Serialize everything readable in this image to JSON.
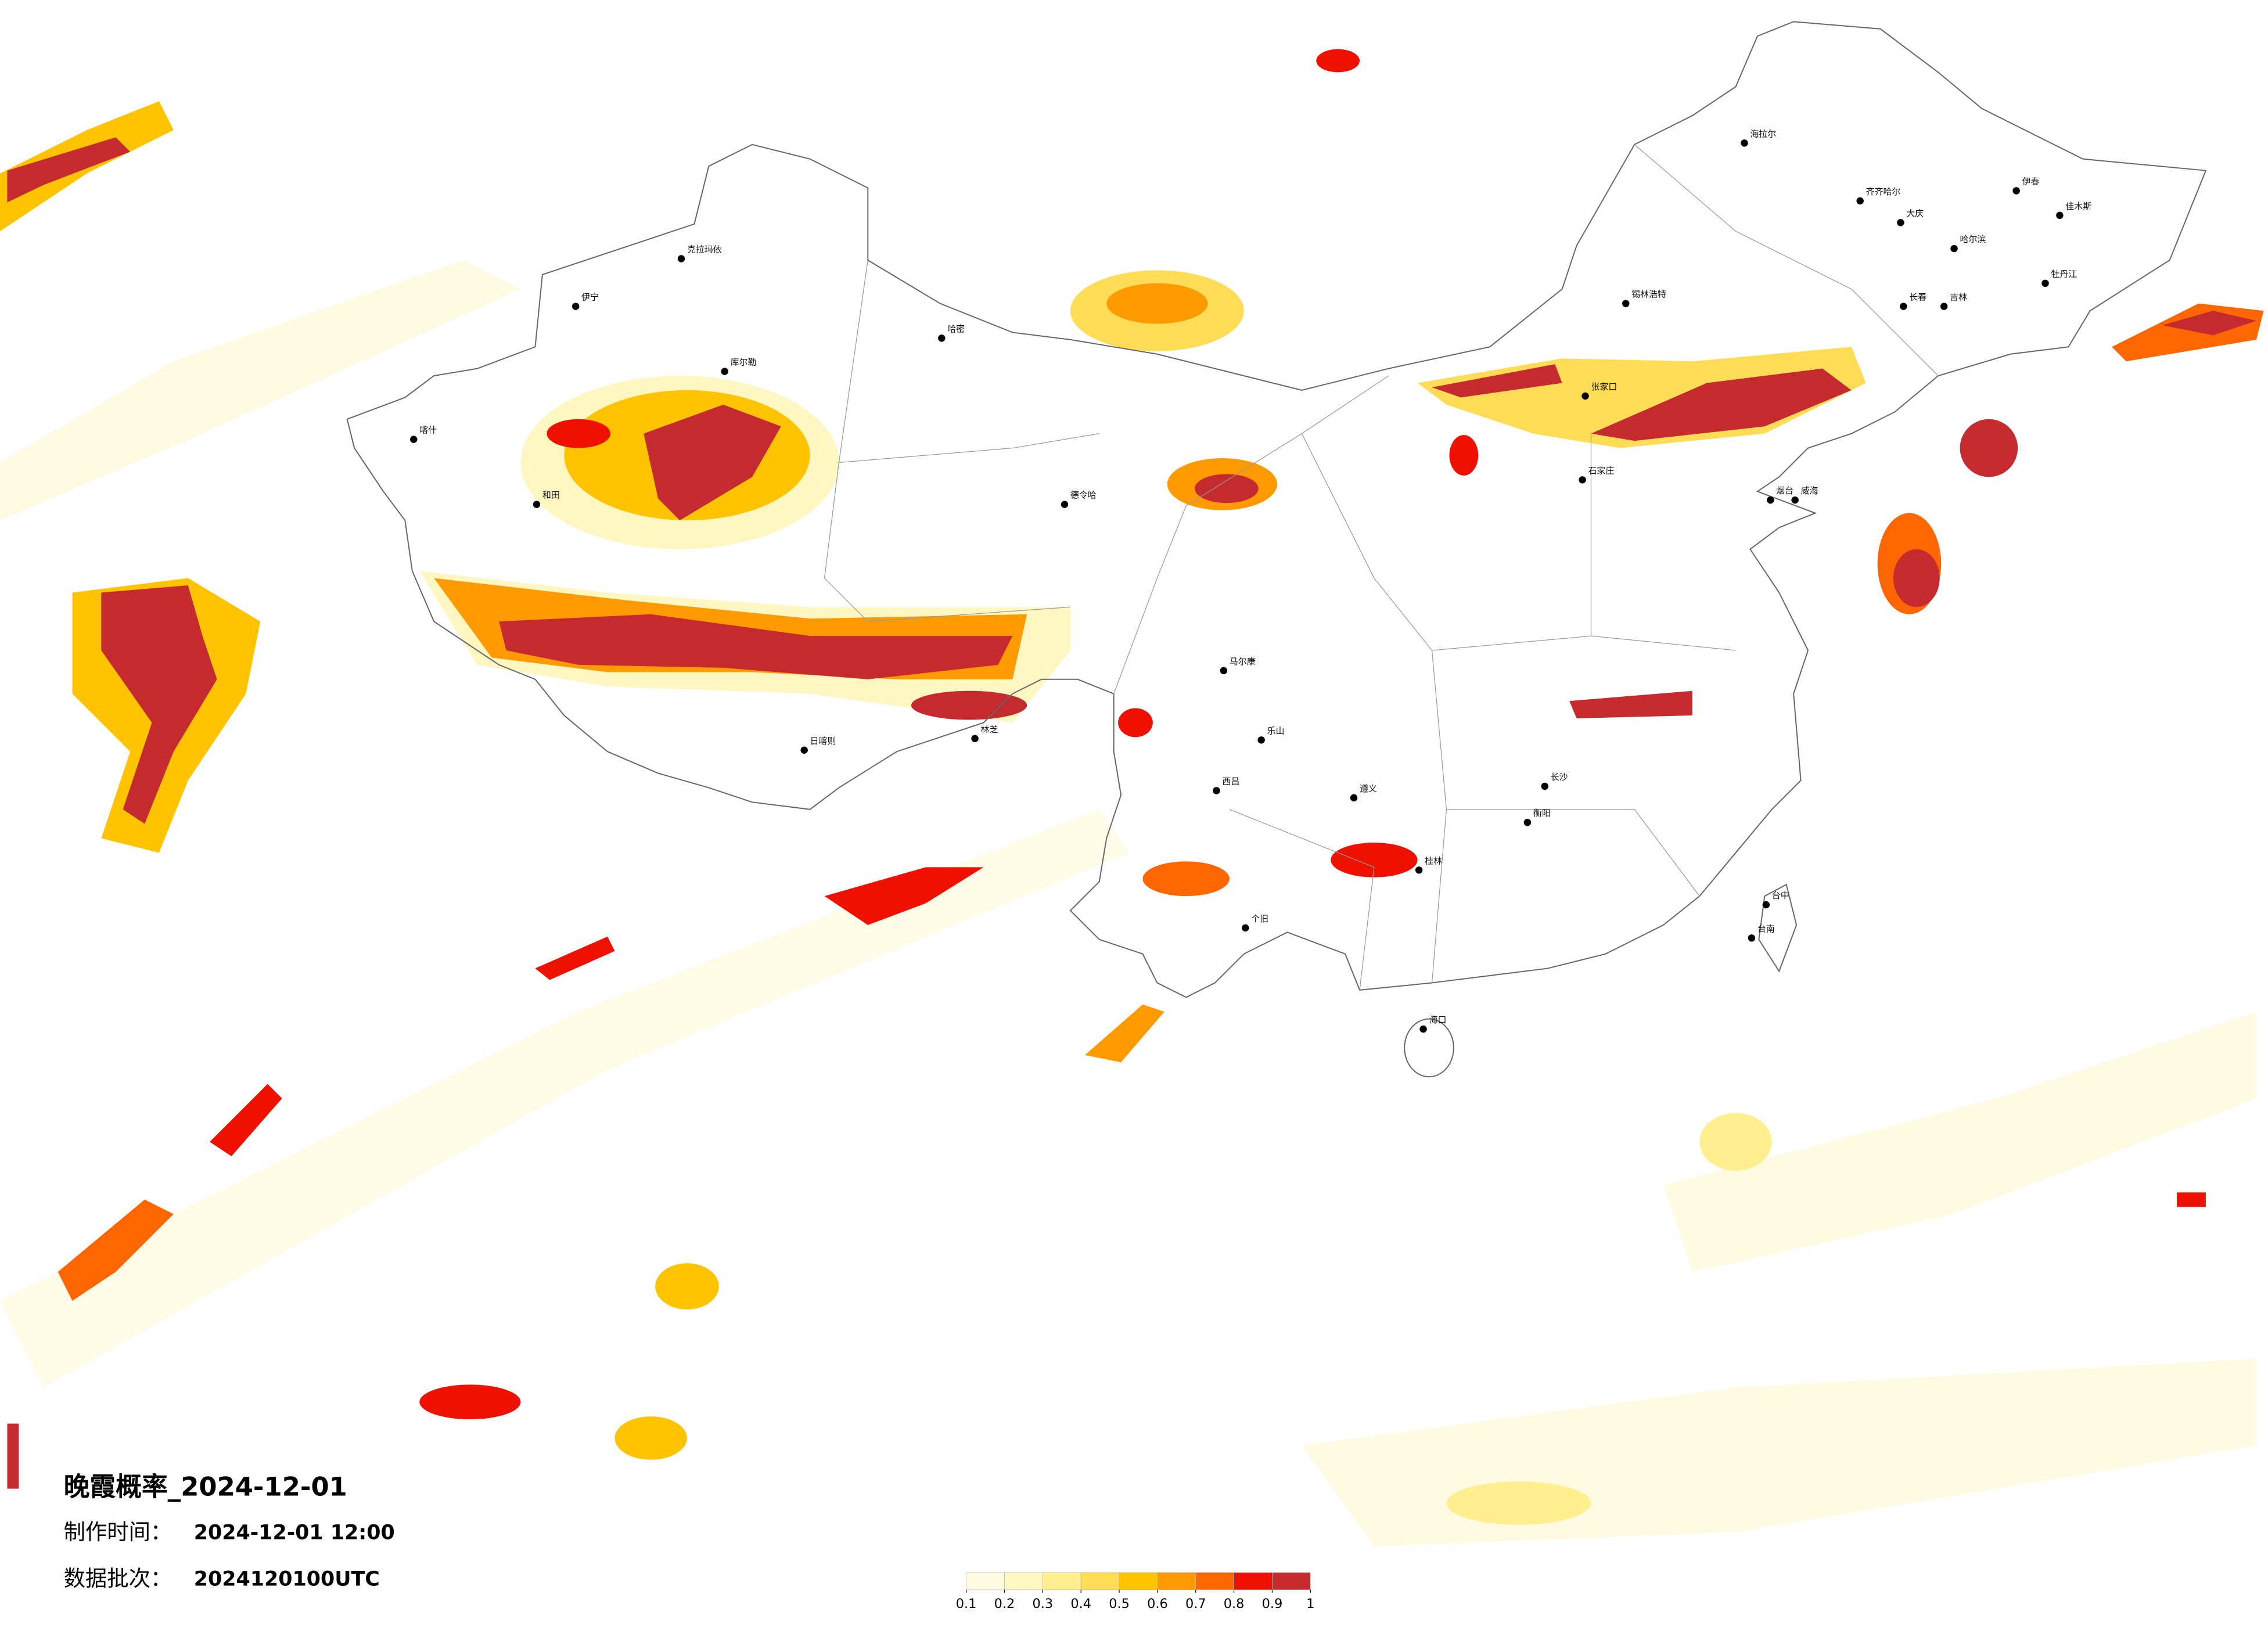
{
  "title": "晚霞概率_2024-12-01",
  "production_time": {
    "label": "制作时间：",
    "value": "2024-12-01 12:00"
  },
  "data_batch": {
    "label": "数据批次：",
    "value": "2024120100UTC"
  },
  "legend": {
    "ticks": [
      0.1,
      0.2,
      0.3,
      0.4,
      0.5,
      0.6,
      0.7,
      0.8,
      0.9,
      1
    ],
    "colors": [
      "#fffbe3",
      "#fff6c2",
      "#ffef8f",
      "#ffdc55",
      "#ffc300",
      "#ff9a00",
      "#ff6600",
      "#ee1100",
      "#c42a2e"
    ]
  },
  "cities": [
    "克拉玛依",
    "伊宁",
    "库尔勒",
    "喀什",
    "和田",
    "哈密",
    "德令哈",
    "日喀则",
    "林芝",
    "海拉尔",
    "齐齐哈尔",
    "大庆",
    "哈尔滨",
    "伊春",
    "佳木斯",
    "牡丹江",
    "长春",
    "吉林",
    "锡林浩特",
    "张家口",
    "石家庄",
    "烟台",
    "威海",
    "长沙",
    "衡阳",
    "桂林",
    "台中",
    "台南",
    "海口",
    "马尔康",
    "遵义",
    "个旧",
    "西昌",
    "乐山"
  ]
}
